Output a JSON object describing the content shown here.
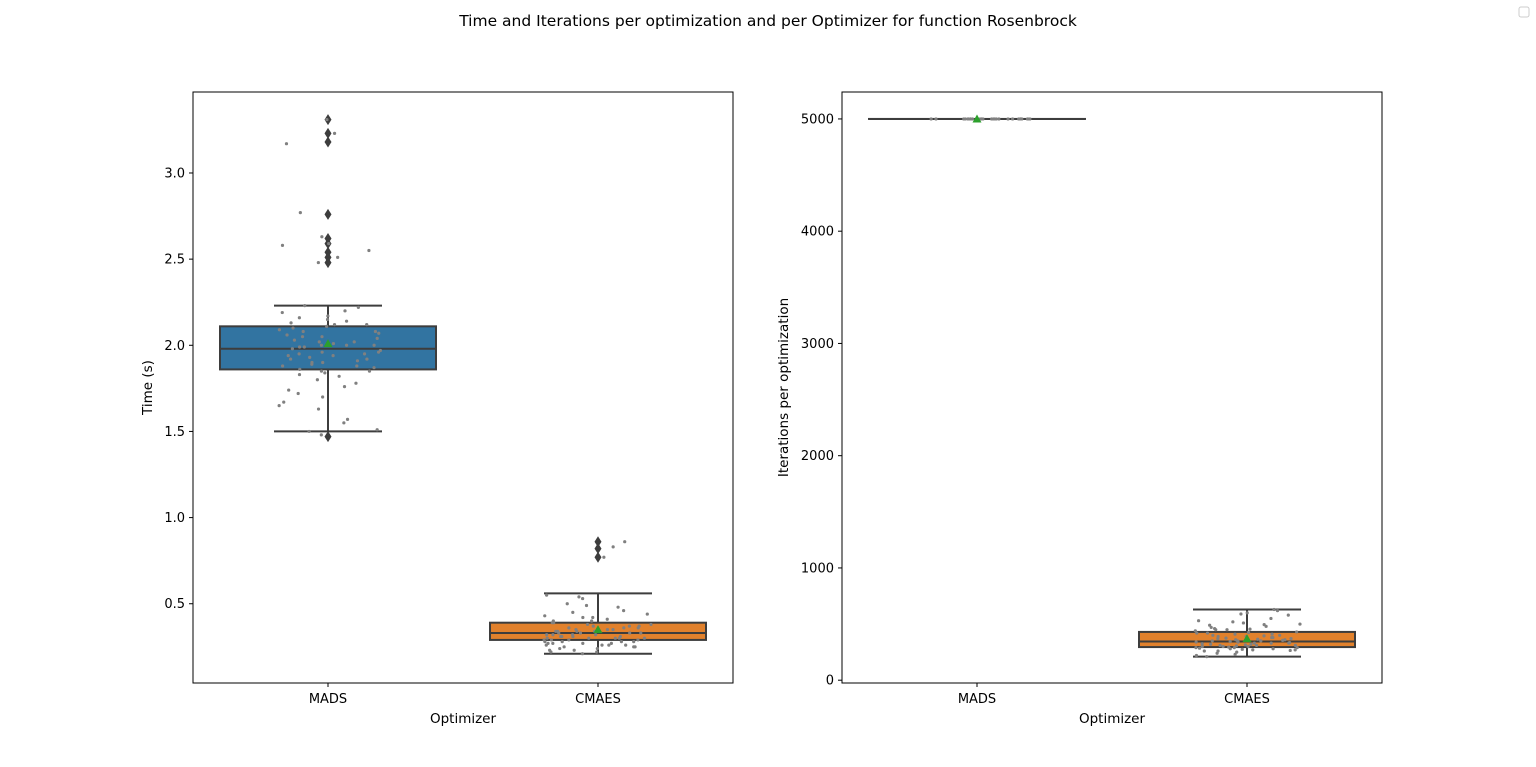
{
  "figure": {
    "title": "Time and Iterations per optimization and per Optimizer for function Rosenbrock"
  },
  "colors": {
    "MADS": "#3274a1",
    "CMAES": "#e1812c",
    "line": "#3d3d3d",
    "strip_points": "#808080",
    "mean_marker": "#2ca02c",
    "outlier": "#3d3d3d"
  },
  "chart_data": [
    {
      "type": "box",
      "xlabel": "Optimizer",
      "ylabel": "Time (s)",
      "categories": [
        "MADS",
        "CMAES"
      ],
      "ylim": [
        0.04,
        3.47
      ],
      "yticks": [
        0.5,
        1.0,
        1.5,
        2.0,
        2.5,
        3.0
      ],
      "ytick_labels": [
        "0.5",
        "1.0",
        "1.5",
        "2.0",
        "2.5",
        "3.0"
      ],
      "boxes": [
        {
          "name": "MADS",
          "whisker_low": 1.5,
          "q1": 1.86,
          "median": 1.98,
          "q3": 2.11,
          "whisker_high": 2.23,
          "mean": 2.01,
          "outliers": [
            3.31,
            3.23,
            3.18,
            2.76,
            2.62,
            2.59,
            2.54,
            2.51,
            2.48,
            1.47
          ],
          "points": [
            3.31,
            3.23,
            3.17,
            2.77,
            2.63,
            2.59,
            2.58,
            2.55,
            2.51,
            2.48,
            2.23,
            2.22,
            2.2,
            2.19,
            2.17,
            2.16,
            2.14,
            2.13,
            2.12,
            2.11,
            2.1,
            2.09,
            2.08,
            2.07,
            2.06,
            2.05,
            2.04,
            2.03,
            2.02,
            2.01,
            2.0,
            1.99,
            1.98,
            1.97,
            1.96,
            1.95,
            1.94,
            1.93,
            1.92,
            1.91,
            1.9,
            1.89,
            1.88,
            1.87,
            1.86,
            1.85,
            1.84,
            1.83,
            1.82,
            1.8,
            1.78,
            1.76,
            1.74,
            1.72,
            1.7,
            1.67,
            1.65,
            1.63,
            1.57,
            1.55,
            1.51,
            1.5,
            1.48,
            2.15,
            2.0,
            1.95,
            1.9,
            1.85,
            2.05,
            1.99,
            2.02,
            1.94,
            2.08,
            1.88,
            2.12,
            1.96,
            2.0,
            1.92
          ]
        },
        {
          "name": "CMAES",
          "whisker_low": 0.21,
          "q1": 0.29,
          "median": 0.33,
          "q3": 0.39,
          "whisker_high": 0.56,
          "mean": 0.35,
          "outliers": [
            0.86,
            0.82,
            0.77
          ],
          "points": [
            0.86,
            0.83,
            0.77,
            0.55,
            0.54,
            0.53,
            0.5,
            0.49,
            0.48,
            0.46,
            0.45,
            0.44,
            0.43,
            0.42,
            0.41,
            0.4,
            0.39,
            0.38,
            0.37,
            0.36,
            0.35,
            0.34,
            0.34,
            0.33,
            0.33,
            0.32,
            0.32,
            0.31,
            0.31,
            0.3,
            0.3,
            0.29,
            0.29,
            0.28,
            0.28,
            0.27,
            0.27,
            0.26,
            0.26,
            0.25,
            0.25,
            0.24,
            0.24,
            0.23,
            0.23,
            0.22,
            0.22,
            0.21,
            0.36,
            0.35,
            0.37,
            0.33,
            0.31,
            0.29,
            0.27,
            0.4,
            0.38,
            0.34,
            0.32,
            0.3,
            0.28,
            0.26,
            0.42,
            0.36,
            0.33,
            0.3,
            0.28,
            0.35,
            0.31,
            0.27,
            0.39,
            0.37,
            0.32,
            0.29,
            0.25,
            0.34,
            0.3,
            0.26
          ]
        }
      ]
    },
    {
      "type": "box",
      "xlabel": "Optimizer",
      "ylabel": "Iterations per optimization",
      "categories": [
        "MADS",
        "CMAES"
      ],
      "ylim": [
        -25,
        5240
      ],
      "yticks": [
        0,
        1000,
        2000,
        3000,
        4000,
        5000
      ],
      "ytick_labels": [
        "0",
        "1000",
        "2000",
        "3000",
        "4000",
        "5000"
      ],
      "boxes": [
        {
          "name": "MADS",
          "whisker_low": 5000,
          "q1": 5000,
          "median": 5000,
          "q3": 5000,
          "whisker_high": 5000,
          "mean": 5000,
          "outliers": [],
          "points": [
            5000,
            5000,
            5000,
            5000,
            5000,
            5000,
            5000,
            5000,
            5000,
            5000,
            5000,
            5000,
            5000,
            5000,
            5000,
            5000,
            5000,
            5000,
            5000,
            5000,
            5000,
            5000,
            5000,
            5000,
            5000,
            5000,
            5000,
            5000,
            5000,
            5000
          ]
        },
        {
          "name": "CMAES",
          "whisker_low": 210,
          "q1": 295,
          "median": 345,
          "q3": 430,
          "whisker_high": 630,
          "mean": 370,
          "outliers": [],
          "points": [
            630,
            620,
            600,
            590,
            580,
            550,
            530,
            520,
            510,
            500,
            495,
            490,
            480,
            470,
            460,
            455,
            450,
            440,
            430,
            425,
            420,
            410,
            400,
            395,
            390,
            380,
            375,
            370,
            365,
            360,
            355,
            350,
            345,
            340,
            335,
            330,
            325,
            320,
            315,
            310,
            305,
            300,
            295,
            290,
            285,
            280,
            275,
            270,
            265,
            260,
            250,
            240,
            230,
            220,
            210,
            380,
            360,
            340,
            320,
            300,
            280,
            260,
            410,
            390,
            370,
            350,
            330,
            310,
            290,
            270,
            400,
            350,
            300,
            450,
            420,
            330,
            310,
            290
          ]
        }
      ]
    }
  ]
}
